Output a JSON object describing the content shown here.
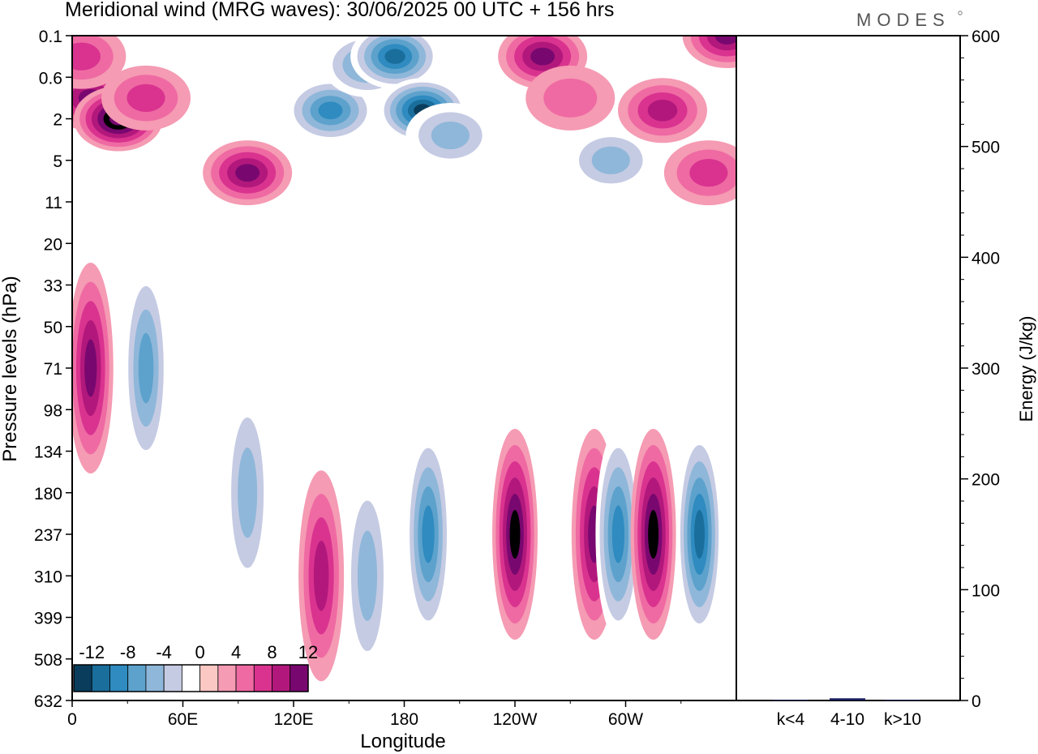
{
  "brand": {
    "logo_text": "MODES"
  },
  "chart_data": [
    {
      "type": "heatmap",
      "title": "Meridional wind (MRG waves):  30/06/2025  00 UTC  + 156 hrs",
      "xlabel": "Longitude",
      "ylabel": "Pressure levels (hPa)",
      "x_ticks": [
        "0",
        "60E",
        "120E",
        "180",
        "120W",
        "60W"
      ],
      "y_ticks": [
        "0.1",
        "0.6",
        "2",
        "5",
        "11",
        "20",
        "33",
        "50",
        "71",
        "98",
        "134",
        "180",
        "237",
        "310",
        "399",
        "508",
        "632"
      ],
      "colorbar": {
        "tick_labels": [
          "-12",
          "-8",
          "-4",
          "0",
          "4",
          "8",
          "12"
        ],
        "levels": [
          -14,
          -12,
          -10,
          -8,
          -6,
          -4,
          -2,
          2,
          4,
          6,
          8,
          10,
          12,
          14
        ],
        "colors": [
          "#0a3d5c",
          "#1a6e9c",
          "#2f8bc0",
          "#5da2cc",
          "#8fb7d9",
          "#c5cbe3",
          "#ffffff",
          "#fbc8c4",
          "#f59bb3",
          "#ef6aa3",
          "#d9338f",
          "#b2187c",
          "#78086f"
        ]
      },
      "cells": [
        {
          "lon": 10,
          "lev": "1",
          "value": 10
        },
        {
          "lon": 25,
          "lev": "2",
          "value": 13
        },
        {
          "lon": 40,
          "lev": "1",
          "value": 6
        },
        {
          "lon": 5,
          "lev": "0.3",
          "value": 5
        },
        {
          "lon": 95,
          "lev": "7",
          "value": 9
        },
        {
          "lon": 140,
          "lev": "1.5",
          "value": -10
        },
        {
          "lon": 160,
          "lev": "0.4",
          "value": -8
        },
        {
          "lon": 175,
          "lev": "0.3",
          "value": -12
        },
        {
          "lon": 190,
          "lev": "1.5",
          "value": -13
        },
        {
          "lon": 205,
          "lev": "3",
          "value": -5
        },
        {
          "lon": 255,
          "lev": "0.3",
          "value": 9
        },
        {
          "lon": 270,
          "lev": "1",
          "value": 3
        },
        {
          "lon": 292,
          "lev": "5",
          "value": -6
        },
        {
          "lon": 320,
          "lev": "1.5",
          "value": 8
        },
        {
          "lon": 345,
          "lev": "7",
          "value": 5
        },
        {
          "lon": 355,
          "lev": "0.1",
          "value": 10
        },
        {
          "lon": 40,
          "lev": "71",
          "value": -7
        },
        {
          "lon": 10,
          "lev": "71",
          "value": 9
        },
        {
          "lon": 95,
          "lev": "180",
          "value": -6
        },
        {
          "lon": 135,
          "lev": "310",
          "value": 7
        },
        {
          "lon": 160,
          "lev": "310",
          "value": -6
        },
        {
          "lon": 193,
          "lev": "237",
          "value": -9
        },
        {
          "lon": 240,
          "lev": "237",
          "value": 11
        },
        {
          "lon": 283,
          "lev": "237",
          "value": 9
        },
        {
          "lon": 296,
          "lev": "237",
          "value": -9
        },
        {
          "lon": 315,
          "lev": "237",
          "value": 12
        },
        {
          "lon": 340,
          "lev": "237",
          "value": -11
        }
      ]
    },
    {
      "type": "bar",
      "ylabel": "Energy (J/kg)",
      "categories": [
        "k<4",
        "4-10",
        "k>10"
      ],
      "values": [
        0.5,
        2,
        0.5
      ],
      "bar_color": "#1a1f5e",
      "y_ticks": [
        "0",
        "100",
        "200",
        "300",
        "400",
        "500",
        "600"
      ],
      "ylim": [
        0,
        600
      ]
    }
  ]
}
